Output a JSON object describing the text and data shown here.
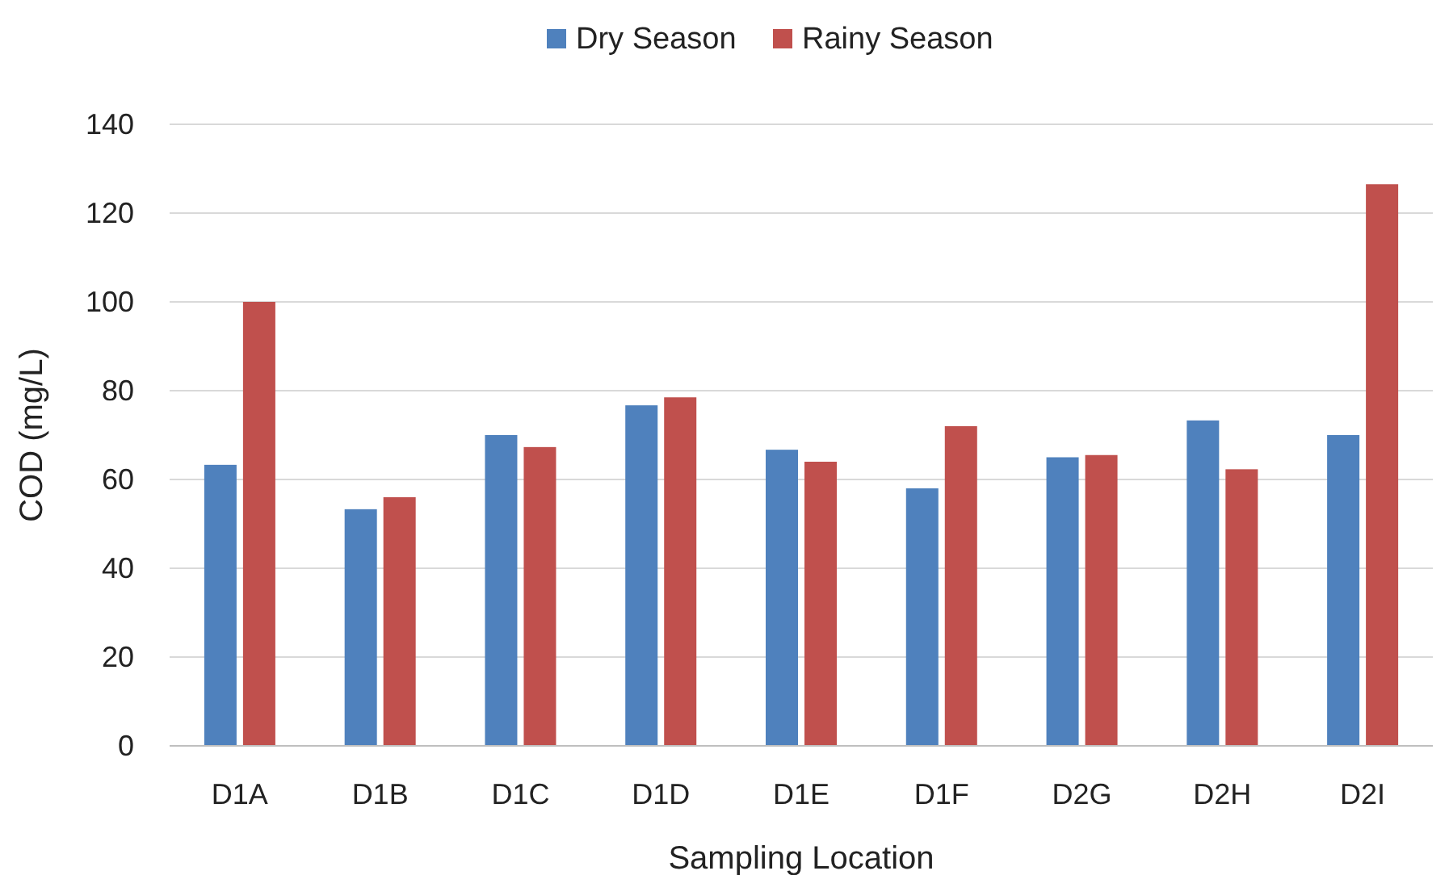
{
  "chart_data": {
    "type": "bar",
    "xlabel": "Sampling Location",
    "ylabel": "COD (mg/L)",
    "categories": [
      "D1A",
      "D1B",
      "D1C",
      "D1D",
      "D1E",
      "D1F",
      "D2G",
      "D2H",
      "D2I"
    ],
    "series": [
      {
        "name": "Dry Season",
        "color": "#4f81bd",
        "values": [
          63.3,
          53.3,
          70,
          76.7,
          66.7,
          58,
          65,
          73.3,
          70
        ]
      },
      {
        "name": "Rainy Season",
        "color": "#c0504d",
        "values": [
          100,
          56,
          67.3,
          78.5,
          64,
          72,
          65.5,
          62.3,
          126.5
        ]
      }
    ],
    "ylim": [
      0,
      140
    ],
    "yticks": [
      0,
      20,
      40,
      60,
      80,
      100,
      120,
      140
    ],
    "grid": "y",
    "legend": "top"
  }
}
